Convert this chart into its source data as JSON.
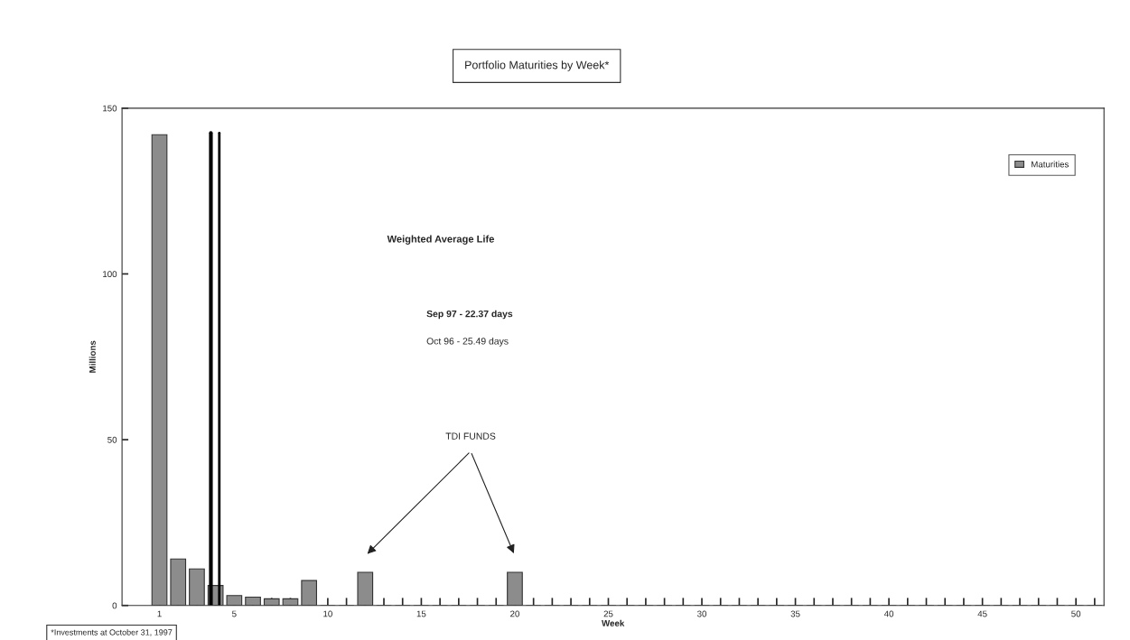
{
  "chart_data": {
    "type": "bar",
    "title": "Portfolio Maturities by Week*",
    "xlabel": "Week",
    "ylabel": "Millions",
    "x": [
      1,
      2,
      3,
      4,
      5,
      6,
      7,
      8,
      9,
      10,
      11,
      12,
      13,
      14,
      15,
      16,
      17,
      18,
      19,
      20,
      21,
      22,
      23,
      24,
      25,
      26,
      27,
      28,
      29,
      30,
      31,
      32,
      33,
      34,
      35,
      36,
      37,
      38,
      39,
      40,
      41,
      42,
      43,
      44,
      45,
      46,
      47,
      48,
      49,
      50,
      51
    ],
    "series": [
      {
        "name": "Maturities",
        "color": "#8c8c8c",
        "values": [
          142,
          14,
          11,
          6,
          3,
          2.5,
          2,
          2,
          7.5,
          0,
          0,
          10,
          0,
          0,
          0,
          0,
          0,
          0,
          0,
          10,
          0,
          0,
          0,
          0,
          0,
          0,
          0,
          0,
          0,
          0,
          0,
          0,
          0,
          0,
          0,
          0,
          0,
          0,
          0,
          0,
          0,
          0,
          0,
          0,
          0,
          0,
          0,
          0,
          0,
          0,
          0
        ]
      }
    ],
    "xlim": [
      -1,
      51.5
    ],
    "ylim": [
      0,
      150
    ],
    "yticks": [
      0,
      50,
      100,
      150
    ],
    "xticks": [
      1,
      {
        "value": 2,
        "label": null
      },
      {
        "value": 3,
        "label": null
      },
      {
        "value": 4,
        "label": null
      },
      5,
      {
        "value": 6,
        "label": null
      },
      {
        "value": 7,
        "label": null
      },
      {
        "value": 8,
        "label": null
      },
      {
        "value": 9,
        "label": null
      },
      10,
      {
        "value": 11,
        "label": null
      },
      {
        "value": 12,
        "label": null
      },
      {
        "value": 13,
        "label": null
      },
      {
        "value": 14,
        "label": null
      },
      15,
      {
        "value": 16,
        "label": null
      },
      {
        "value": 17,
        "label": null
      },
      {
        "value": 18,
        "label": null
      },
      {
        "value": 19,
        "label": null
      },
      20,
      {
        "value": 21,
        "label": null
      },
      {
        "value": 22,
        "label": null
      },
      {
        "value": 23,
        "label": null
      },
      {
        "value": 24,
        "label": null
      },
      25,
      {
        "value": 26,
        "label": null
      },
      {
        "value": 27,
        "label": null
      },
      {
        "value": 28,
        "label": null
      },
      {
        "value": 29,
        "label": null
      },
      30,
      {
        "value": 31,
        "label": null
      },
      {
        "value": 32,
        "label": null
      },
      {
        "value": 33,
        "label": null
      },
      {
        "value": 34,
        "label": null
      },
      35,
      {
        "value": 36,
        "label": null
      },
      {
        "value": 37,
        "label": null
      },
      {
        "value": 38,
        "label": null
      },
      {
        "value": 39,
        "label": null
      },
      40,
      {
        "value": 41,
        "label": null
      },
      {
        "value": 42,
        "label": null
      },
      {
        "value": 43,
        "label": null
      },
      {
        "value": 44,
        "label": null
      },
      45,
      {
        "value": 46,
        "label": null
      },
      {
        "value": 47,
        "label": null
      },
      {
        "value": 48,
        "label": null
      },
      {
        "value": 49,
        "label": null
      },
      50,
      {
        "value": 51,
        "label": null
      }
    ],
    "ref_lines": [
      {
        "axis": "x",
        "value": 3.75,
        "color": "#000000"
      },
      {
        "axis": "x",
        "value": 4.2,
        "color": "#000000"
      }
    ],
    "annotations": [
      "Weighted Average Life",
      "Sep 97 - 22.37 days",
      "Oct 96 - 25.49 days",
      "TDI FUNDS",
      "*Investments at October 31, 1997"
    ],
    "legend": "top right",
    "grid": false
  }
}
